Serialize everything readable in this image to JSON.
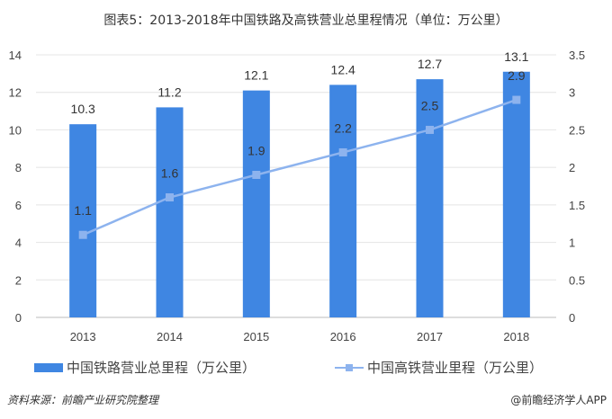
{
  "chart_data": {
    "type": "bar+line",
    "title": "图表5：2013-2018年中国铁路及高铁营业总里程情况（单位：万公里）",
    "categories": [
      "2013",
      "2014",
      "2015",
      "2016",
      "2017",
      "2018"
    ],
    "series": [
      {
        "name": "中国铁路营业总里程（万公里）",
        "type": "bar",
        "axis": "left",
        "values": [
          10.3,
          11.2,
          12.1,
          12.4,
          12.7,
          13.1
        ],
        "color": "#3f86e2"
      },
      {
        "name": "中国高铁营业里程（万公里）",
        "type": "line",
        "axis": "right",
        "values": [
          1.1,
          1.6,
          1.9,
          2.2,
          2.5,
          2.9
        ],
        "color": "#8db3ee"
      }
    ],
    "y_left": {
      "range": [
        0,
        14
      ],
      "ticks": [
        "0",
        "2",
        "4",
        "6",
        "8",
        "10",
        "12",
        "14"
      ]
    },
    "y_right": {
      "range": [
        0,
        3.5
      ],
      "ticks": [
        "0",
        "0.5",
        "1",
        "1.5",
        "2",
        "2.5",
        "3",
        "3.5"
      ]
    },
    "grid": true,
    "legend_position": "bottom"
  },
  "footer": {
    "source": "资料来源：前瞻产业研究院整理",
    "brand": "@前瞻经济学人APP"
  }
}
